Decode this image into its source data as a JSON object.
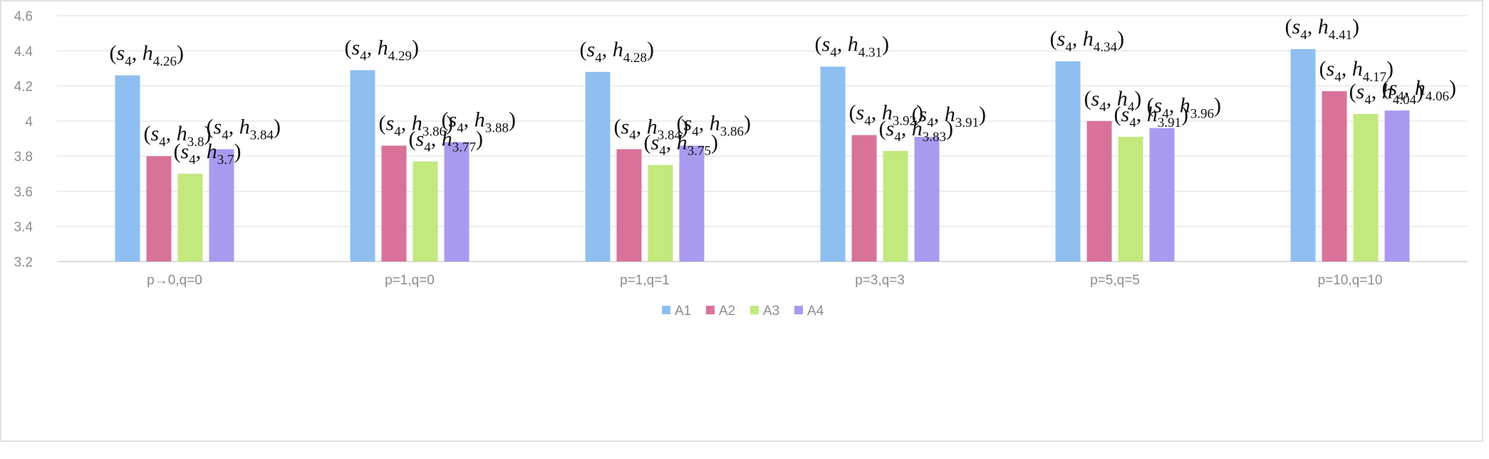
{
  "chart_data": {
    "type": "bar",
    "categories": [
      "p→0,q=0",
      "p=1,q=0",
      "p=1,q=1",
      "p=3,q=3",
      "p=5,q=5",
      "p=10,q=10"
    ],
    "series": [
      {
        "name": "A1",
        "values": [
          4.26,
          4.29,
          4.28,
          4.31,
          4.34,
          4.41
        ],
        "color": "#8fbff0"
      },
      {
        "name": "A2",
        "values": [
          3.8,
          3.86,
          3.84,
          3.92,
          4.0,
          4.17
        ],
        "color": "#d9729a"
      },
      {
        "name": "A3",
        "values": [
          3.7,
          3.77,
          3.75,
          3.83,
          3.91,
          4.04
        ],
        "color": "#c2e87e"
      },
      {
        "name": "A4",
        "values": [
          3.84,
          3.88,
          3.86,
          3.91,
          3.96,
          4.06
        ],
        "color": "#a99af0"
      }
    ],
    "data_labels": [
      [
        "4.26",
        "3.8",
        "3.7",
        "3.84"
      ],
      [
        "4.29",
        "3.86",
        "3.77",
        "3.88"
      ],
      [
        "4.28",
        "3.84",
        "3.75",
        "3.86"
      ],
      [
        "4.31",
        "3.92",
        "3.83",
        "3.91"
      ],
      [
        "4.34",
        "4",
        "3.91",
        "3.96"
      ],
      [
        "4.41",
        "4.17",
        "4.04",
        "4.06"
      ]
    ],
    "label_symbol": "s",
    "label_symbol_sub": "4",
    "label_variable": "h",
    "yticks": [
      "3.2",
      "3.4",
      "3.6",
      "3.8",
      "4",
      "4.2",
      "4.4",
      "4.6"
    ],
    "ylim": [
      3.2,
      4.6
    ],
    "grid": true,
    "legend_position": "bottom",
    "title": "",
    "xlabel": "",
    "ylabel": ""
  }
}
